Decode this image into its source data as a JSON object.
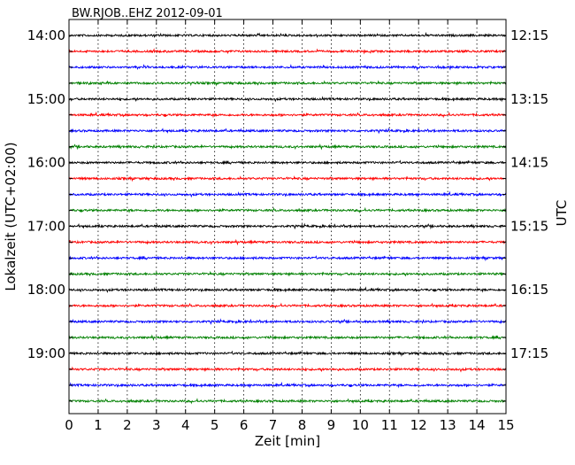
{
  "chart_data": {
    "type": "line",
    "title": "BW.RJOB..EHZ 2012-09-01",
    "xlabel": "Zeit  [min]",
    "ylabel_left": "Lokalzeit (UTC+02:00)",
    "ylabel_right": "UTC",
    "xlim": [
      0,
      15
    ],
    "x_ticks": [
      0,
      1,
      2,
      3,
      4,
      5,
      6,
      7,
      8,
      9,
      10,
      11,
      12,
      13,
      14,
      15
    ],
    "x_tick_labels": [
      "0",
      "1",
      "2",
      "3",
      "4",
      "5",
      "6",
      "7",
      "8",
      "9",
      "10",
      "11",
      "12",
      "13",
      "14",
      "15"
    ],
    "grid": true,
    "trace_minutes": 15,
    "trace_count": 24,
    "trace_colors": [
      "#000000",
      "#ff0000",
      "#0000ff",
      "#008000"
    ],
    "left_tick_labels": [
      "14:00",
      "15:00",
      "16:00",
      "17:00",
      "18:00",
      "19:00"
    ],
    "right_tick_labels": [
      "12:15",
      "13:15",
      "14:15",
      "15:15",
      "16:15",
      "17:15"
    ],
    "traces_per_label": 4
  }
}
